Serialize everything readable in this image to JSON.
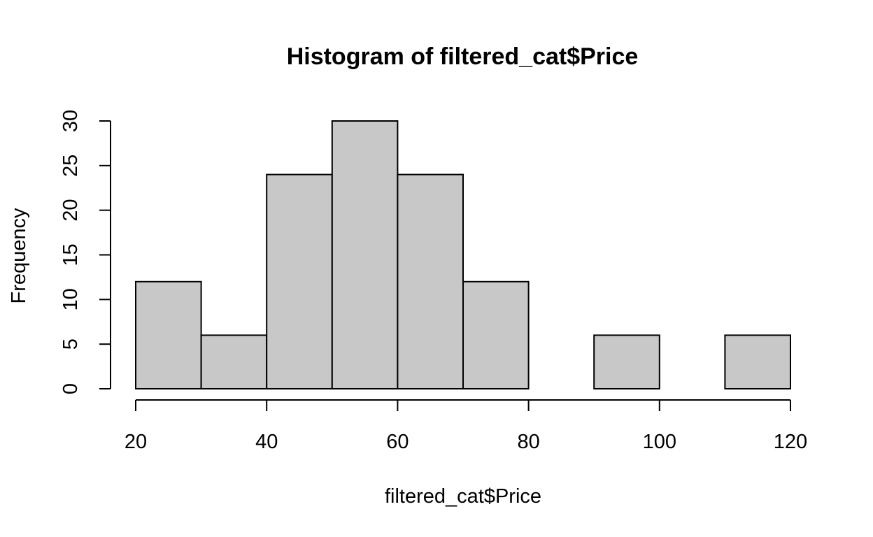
{
  "chart_data": {
    "type": "bar",
    "title": "Histogram of filtered_cat$Price",
    "xlabel": "filtered_cat$Price",
    "ylabel": "Frequency",
    "bins": [
      {
        "start": 20,
        "end": 30,
        "count": 12
      },
      {
        "start": 30,
        "end": 40,
        "count": 6
      },
      {
        "start": 40,
        "end": 50,
        "count": 24
      },
      {
        "start": 50,
        "end": 60,
        "count": 30
      },
      {
        "start": 60,
        "end": 70,
        "count": 24
      },
      {
        "start": 70,
        "end": 80,
        "count": 12
      },
      {
        "start": 80,
        "end": 90,
        "count": 0
      },
      {
        "start": 90,
        "end": 100,
        "count": 6
      },
      {
        "start": 100,
        "end": 110,
        "count": 0
      },
      {
        "start": 110,
        "end": 120,
        "count": 6
      }
    ],
    "xlim": [
      20,
      120
    ],
    "ylim": [
      0,
      30
    ],
    "x_ticks": [
      20,
      40,
      60,
      80,
      100,
      120
    ],
    "y_ticks": [
      0,
      5,
      10,
      15,
      20,
      25,
      30
    ],
    "bar_color": "#C8C8C8",
    "grid": false,
    "legend": "none"
  }
}
